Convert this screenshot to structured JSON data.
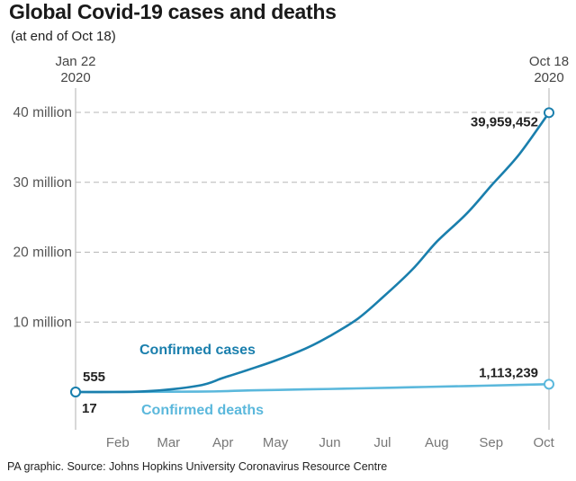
{
  "header": {
    "title": "Global Covid-19 cases and deaths",
    "subtitle": "(at end of Oct 18)"
  },
  "footer": {
    "source": "PA graphic. Source: Johns Hopkins University Coronavirus Resource Centre"
  },
  "colors": {
    "cases": "#1a7fad",
    "deaths": "#5bb8dc",
    "grid": "#b5b5b5"
  },
  "chart_data": {
    "type": "line",
    "title": "Global Covid-19 cases and deaths",
    "subtitle": "(at end of Oct 18)",
    "x_type": "date",
    "x_range": [
      "2020-01-22",
      "2020-10-18"
    ],
    "ylim": [
      0,
      40000000
    ],
    "yticks": [
      {
        "value": 10000000,
        "label": "10 million"
      },
      {
        "value": 20000000,
        "label": "20 million"
      },
      {
        "value": 30000000,
        "label": "30 million"
      },
      {
        "value": 40000000,
        "label": "40 million"
      }
    ],
    "month_ticks": [
      {
        "date": "2020-02-15",
        "label": "Feb"
      },
      {
        "date": "2020-03-15",
        "label": "Mar"
      },
      {
        "date": "2020-04-15",
        "label": "Apr"
      },
      {
        "date": "2020-05-15",
        "label": "May"
      },
      {
        "date": "2020-06-15",
        "label": "Jun"
      },
      {
        "date": "2020-07-15",
        "label": "Jul"
      },
      {
        "date": "2020-08-15",
        "label": "Aug"
      },
      {
        "date": "2020-09-15",
        "label": "Sep"
      },
      {
        "date": "2020-10-15",
        "label": "Oct"
      }
    ],
    "start_marker": {
      "date": "2020-01-22",
      "line1": "Jan 22",
      "line2": "2020"
    },
    "end_marker": {
      "date": "2020-10-18",
      "line1": "Oct 18",
      "line2": "2020"
    },
    "grid": "horizontal dashed",
    "series": [
      {
        "name": "Confirmed cases",
        "key": "cases",
        "start_label": "555",
        "end_label": "39,959,452",
        "points": [
          [
            "2020-01-22",
            555
          ],
          [
            "2020-03-01",
            90000
          ],
          [
            "2020-04-01",
            900000
          ],
          [
            "2020-04-15",
            2000000
          ],
          [
            "2020-05-01",
            3300000
          ],
          [
            "2020-05-15",
            4500000
          ],
          [
            "2020-06-01",
            6200000
          ],
          [
            "2020-06-15",
            8000000
          ],
          [
            "2020-07-01",
            10500000
          ],
          [
            "2020-07-15",
            13500000
          ],
          [
            "2020-08-01",
            17500000
          ],
          [
            "2020-08-15",
            21500000
          ],
          [
            "2020-09-01",
            25500000
          ],
          [
            "2020-09-15",
            29500000
          ],
          [
            "2020-10-01",
            34000000
          ],
          [
            "2020-10-18",
            39959452
          ]
        ]
      },
      {
        "name": "Confirmed deaths",
        "key": "deaths",
        "start_label": "17",
        "end_label": "1,113,239",
        "points": [
          [
            "2020-01-22",
            17
          ],
          [
            "2020-04-01",
            50000
          ],
          [
            "2020-05-01",
            230000
          ],
          [
            "2020-06-01",
            370000
          ],
          [
            "2020-07-01",
            510000
          ],
          [
            "2020-08-01",
            680000
          ],
          [
            "2020-09-01",
            850000
          ],
          [
            "2020-10-01",
            1010000
          ],
          [
            "2020-10-18",
            1113239
          ]
        ]
      }
    ]
  }
}
